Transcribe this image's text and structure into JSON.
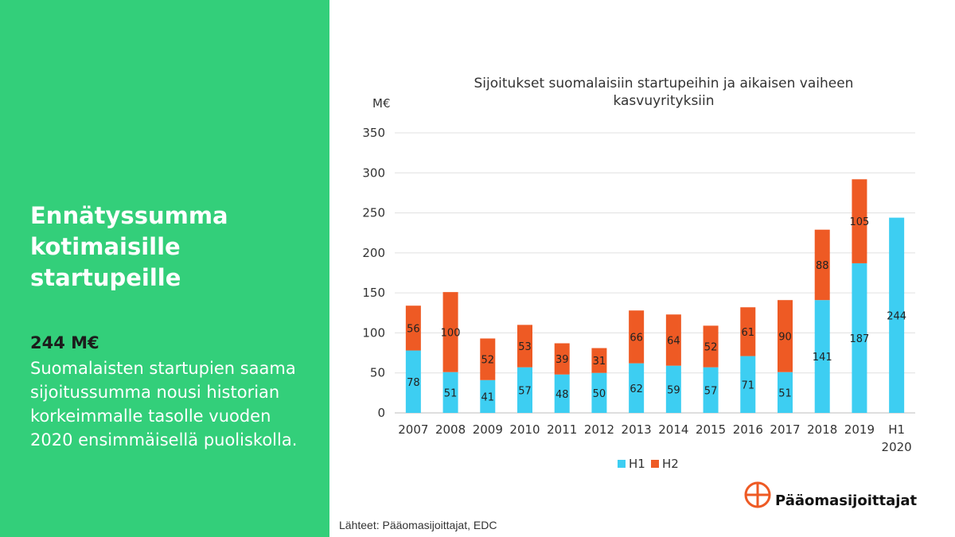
{
  "left": {
    "headline": "Ennätyssumma\nkotimaisille\nstartupeille",
    "stat_value": "244 M€",
    "stat_text": "Suomalaisten startupien saama sijoitussumma nousi historian korkeimmalle tasolle vuoden 2020 ensimmäisellä puoliskolla."
  },
  "chart_data": {
    "type": "bar",
    "stacked": true,
    "title": "Sijoitukset suomalaisiin startupeihin ja aikaisen vaiheen kasvuyrityksiin",
    "ylabel": "M€",
    "ylim": [
      0,
      350
    ],
    "yticks": [
      0,
      50,
      100,
      150,
      200,
      250,
      300,
      350
    ],
    "grid": true,
    "legend_position": "bottom",
    "categories": [
      "2007",
      "2008",
      "2009",
      "2010",
      "2011",
      "2012",
      "2013",
      "2014",
      "2015",
      "2016",
      "2017",
      "2018",
      "2019",
      "H1\n2020"
    ],
    "series": [
      {
        "name": "H1",
        "color": "#3dcef2",
        "values": [
          78,
          51,
          41,
          57,
          48,
          50,
          62,
          59,
          57,
          71,
          51,
          141,
          187,
          244
        ]
      },
      {
        "name": "H2",
        "color": "#ee5a24",
        "values": [
          56,
          100,
          52,
          53,
          39,
          31,
          66,
          64,
          52,
          61,
          90,
          88,
          105,
          null
        ]
      }
    ]
  },
  "source": "Lähteet: Pääomasijoittajat, EDC",
  "logo": {
    "text": "Pääomasijoittajat",
    "icon": "plus-circle-icon",
    "color": "#ee5a24"
  }
}
